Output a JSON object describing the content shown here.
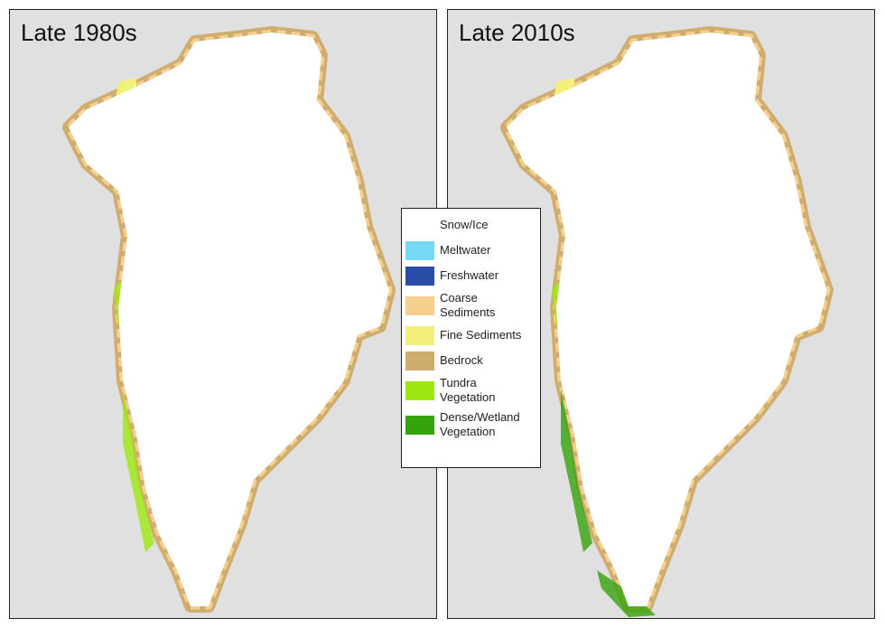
{
  "panels": [
    {
      "title": "Late 1980s"
    },
    {
      "title": "Late 2010s"
    }
  ],
  "legend": {
    "items": [
      {
        "label": "Snow/Ice",
        "color": "#ffffff"
      },
      {
        "label": "Meltwater",
        "color": "#73d9f5"
      },
      {
        "label": "Freshwater",
        "color": "#2a4ea6"
      },
      {
        "label": "Coarse Sediments",
        "color": "#f5cf8e"
      },
      {
        "label": "Fine Sediments",
        "color": "#f2f07a"
      },
      {
        "label": "Bedrock",
        "color": "#cfad6f"
      },
      {
        "label": "Tundra Vegetation",
        "color": "#9ee812"
      },
      {
        "label": "Dense/Wetland Vegetation",
        "color": "#35a30b"
      }
    ]
  }
}
